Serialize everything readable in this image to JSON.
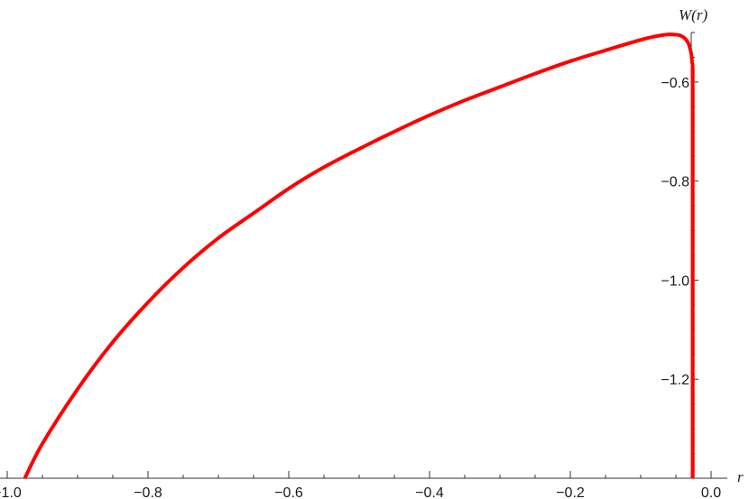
{
  "chart_data": {
    "type": "line",
    "title": "",
    "xlabel": "r",
    "ylabel": "W(r)",
    "xlim": [
      -1.0,
      0.0
    ],
    "ylim": [
      -1.4,
      -0.5
    ],
    "grid": false,
    "legend": "none",
    "x_ticks": [
      {
        "value": -1.0,
        "label": "−1.0"
      },
      {
        "value": -0.8,
        "label": "−0.8"
      },
      {
        "value": -0.6,
        "label": "−0.6"
      },
      {
        "value": -0.4,
        "label": "−0.4"
      },
      {
        "value": -0.2,
        "label": "−0.2"
      },
      {
        "value": 0.0,
        "label": "0.0"
      }
    ],
    "y_ticks": [
      {
        "value": -0.6,
        "label": "−0.6"
      },
      {
        "value": -0.8,
        "label": "−0.8"
      },
      {
        "value": -1.0,
        "label": "−1.0"
      },
      {
        "value": -1.2,
        "label": "−1.2"
      }
    ],
    "series": [
      {
        "color": "#ff0000",
        "x": [
          -0.975,
          -0.95,
          -0.9,
          -0.85,
          -0.8,
          -0.75,
          -0.7,
          -0.65,
          -0.6,
          -0.55,
          -0.5,
          -0.45,
          -0.4,
          -0.35,
          -0.3,
          -0.25,
          -0.2,
          -0.15,
          -0.1,
          -0.08,
          -0.065,
          -0.055,
          -0.045,
          -0.038,
          -0.033,
          -0.03,
          -0.028,
          -0.027,
          -0.026,
          -0.026,
          -0.026,
          -0.026
        ],
        "y": [
          -1.4,
          -1.33,
          -1.22,
          -1.125,
          -1.045,
          -0.975,
          -0.915,
          -0.865,
          -0.815,
          -0.772,
          -0.735,
          -0.7,
          -0.667,
          -0.637,
          -0.61,
          -0.583,
          -0.558,
          -0.536,
          -0.515,
          -0.508,
          -0.5045,
          -0.504,
          -0.5055,
          -0.511,
          -0.52,
          -0.532,
          -0.545,
          -0.56,
          -0.58,
          -0.7,
          -1.0,
          -1.4
        ]
      }
    ]
  }
}
